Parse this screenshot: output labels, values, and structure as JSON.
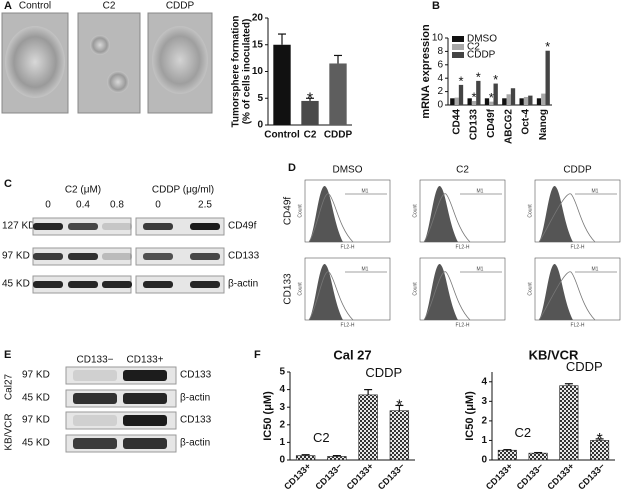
{
  "figure": {
    "panel_labels": [
      "A",
      "B",
      "C",
      "D",
      "E",
      "F"
    ],
    "A_images": [
      "Control",
      "C2",
      "CDDP"
    ],
    "C_blot": {
      "c2_header": "C2 (μM)",
      "c2_doses": [
        "0",
        "0.4",
        "0.8"
      ],
      "cddp_header": "CDDP (μg/ml)",
      "cddp_doses": [
        "0",
        "2.5"
      ],
      "sizes": [
        "127 KD",
        "97 KD",
        "45 KD"
      ],
      "proteins": [
        "CD49f",
        "CD133",
        "β-actin"
      ]
    },
    "D_flow": {
      "columns": [
        "DMSO",
        "C2",
        "CDDP"
      ],
      "rows": [
        "CD49f",
        "CD133"
      ],
      "gate": "M1",
      "x_axis": "FL2-H",
      "y_axis": "Count"
    },
    "E_blot": {
      "headers": [
        "CD133−",
        "CD133+"
      ],
      "cell_lines": [
        "Cal27",
        "KB/VCR"
      ],
      "sizes": [
        "97 KD",
        "45 KD",
        "97 KD",
        "45 KD"
      ],
      "proteins": [
        "CD133",
        "β-actin",
        "CD133",
        "β-actin"
      ]
    }
  },
  "chart_data": [
    {
      "type": "bar",
      "ylabel": [
        "Tumorsphere formation",
        "(% of cells inoculated)"
      ],
      "categories": [
        "Control",
        "C2",
        "CDDP"
      ],
      "values": [
        15,
        4.5,
        11.5
      ],
      "errors": [
        2,
        0.5,
        1.5
      ],
      "colors": [
        "#111111",
        "#4a4a4a",
        "#5e5e5e"
      ],
      "annotations": [
        null,
        "*",
        null
      ],
      "ylim": [
        0,
        20
      ],
      "yticks": [
        0,
        5,
        10,
        15,
        20
      ]
    },
    {
      "type": "grouped_bar",
      "ylabel": "mRNA expression",
      "categories": [
        "CD44",
        "CD133",
        "CD49f",
        "ABCG2",
        "Oct-4",
        "Nanog"
      ],
      "series": [
        {
          "name": "DMSO",
          "color": "#111111",
          "values": [
            1,
            1,
            1,
            1,
            1,
            1
          ],
          "annotations": [
            null,
            null,
            null,
            null,
            null,
            null
          ]
        },
        {
          "name": "C2",
          "color": "#a8a8a8",
          "values": [
            1.1,
            0.6,
            0.5,
            1.6,
            1.2,
            1.7
          ],
          "annotations": [
            null,
            "*",
            "*",
            null,
            null,
            null
          ]
        },
        {
          "name": "CDDP",
          "color": "#444444",
          "values": [
            3.0,
            3.6,
            3.2,
            2.5,
            1.4,
            8.1
          ],
          "annotations": [
            "*",
            "*",
            "*",
            null,
            null,
            "*"
          ]
        }
      ],
      "legend": "upper left",
      "ylim": [
        0,
        10
      ],
      "yticks": [
        0,
        2,
        4,
        6,
        8,
        10
      ]
    },
    {
      "type": "bar",
      "title": "Cal 27",
      "ylabel": "IC50 (μM)",
      "categories": [
        "CD133+",
        "CD133−",
        "CD133+",
        "CD133−"
      ],
      "group_labels": [
        "C2",
        "CDDP"
      ],
      "values": [
        0.25,
        0.2,
        3.7,
        2.8
      ],
      "errors": [
        0.05,
        0.05,
        0.3,
        0.3
      ],
      "color": "#333333",
      "annotations": [
        null,
        null,
        null,
        "*"
      ],
      "ylim": [
        0,
        5
      ],
      "yticks": [
        0,
        1,
        2,
        3,
        4,
        5
      ]
    },
    {
      "type": "bar",
      "title": "KB/VCR",
      "ylabel": "IC50 (μM)",
      "categories": [
        "CD133+",
        "CD133−",
        "CD133+",
        "CD133−"
      ],
      "group_labels": [
        "C2",
        "CDDP"
      ],
      "values": [
        0.5,
        0.35,
        3.8,
        1.0
      ],
      "errors": [
        0.03,
        0.03,
        0.1,
        0.08
      ],
      "color": "#333333",
      "annotations": [
        null,
        null,
        null,
        "*"
      ],
      "ylim": [
        0,
        4.5
      ],
      "yticks": [
        0,
        1,
        2,
        3,
        4
      ]
    }
  ]
}
